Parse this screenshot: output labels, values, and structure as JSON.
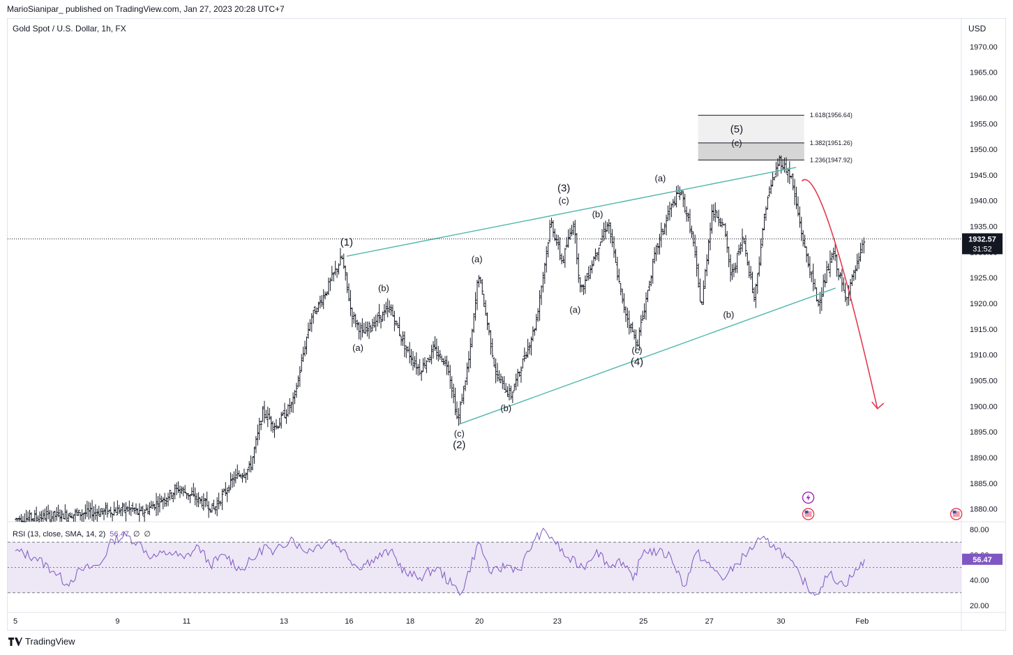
{
  "header": {
    "publish_line": "MarioSianipar_ published on TradingView.com, Jan 27, 2023 20:28 UTC+7"
  },
  "footer": {
    "brand": "TradingView",
    "logo_icon": "tradingview-logo-icon"
  },
  "colors": {
    "candle": "#131722",
    "trendline": "#4db6ac",
    "projection": "#e53950",
    "rsi_line": "#7e57c2",
    "rsi_band": "#ede7f6",
    "price_label_bg": "#131722",
    "fib_band_light": "#f0f0f0",
    "fib_band_dark": "#d6d6d6"
  },
  "chart_data": [
    {
      "type": "candlestick",
      "title": "Gold Spot / U.S. Dollar, 1h, FX",
      "currency": "USD",
      "x_ticks": [
        "5",
        "9",
        "11",
        "13",
        "16",
        "18",
        "20",
        "23",
        "25",
        "27",
        "30",
        "Feb"
      ],
      "y_ticks": [
        1880,
        1885,
        1890,
        1895,
        1900,
        1905,
        1910,
        1915,
        1920,
        1925,
        1930,
        1935,
        1940,
        1945,
        1950,
        1955,
        1960,
        1965,
        1970
      ],
      "ylim": [
        1877.5,
        1975
      ],
      "last_price": "1932.57",
      "countdown": "31:52",
      "swing_points": [
        {
          "x": 0.0,
          "y": 1878
        },
        {
          "x": 14.4,
          "y": 1880
        },
        {
          "x": 15.5,
          "y": 1879
        },
        {
          "x": 20.3,
          "y": 1884
        },
        {
          "x": 24.7,
          "y": 1880
        },
        {
          "x": 27.2,
          "y": 1886
        },
        {
          "x": 29.2,
          "y": 1888
        },
        {
          "x": 30.8,
          "y": 1899
        },
        {
          "x": 32.4,
          "y": 1896
        },
        {
          "x": 34.6,
          "y": 1901
        },
        {
          "x": 36.7,
          "y": 1917
        },
        {
          "x": 38.5,
          "y": 1922
        },
        {
          "x": 40.6,
          "y": 1929
        },
        {
          "x": 41.8,
          "y": 1918
        },
        {
          "x": 43.2,
          "y": 1914
        },
        {
          "x": 45.0,
          "y": 1917
        },
        {
          "x": 46.6,
          "y": 1919
        },
        {
          "x": 48.6,
          "y": 1911
        },
        {
          "x": 50.3,
          "y": 1907
        },
        {
          "x": 52.0,
          "y": 1911
        },
        {
          "x": 53.8,
          "y": 1908
        },
        {
          "x": 55.0,
          "y": 1897
        },
        {
          "x": 56.5,
          "y": 1910
        },
        {
          "x": 57.6,
          "y": 1926
        },
        {
          "x": 59.8,
          "y": 1906
        },
        {
          "x": 61.6,
          "y": 1902
        },
        {
          "x": 63.4,
          "y": 1910
        },
        {
          "x": 64.7,
          "y": 1916
        },
        {
          "x": 66.6,
          "y": 1936
        },
        {
          "x": 68.0,
          "y": 1928
        },
        {
          "x": 69.4,
          "y": 1936
        },
        {
          "x": 70.3,
          "y": 1922
        },
        {
          "x": 72.2,
          "y": 1930
        },
        {
          "x": 73.7,
          "y": 1936
        },
        {
          "x": 75.5,
          "y": 1920
        },
        {
          "x": 77.3,
          "y": 1912
        },
        {
          "x": 79.6,
          "y": 1930
        },
        {
          "x": 81.3,
          "y": 1938
        },
        {
          "x": 82.7,
          "y": 1942
        },
        {
          "x": 84.2,
          "y": 1933
        },
        {
          "x": 85.3,
          "y": 1919
        },
        {
          "x": 86.6,
          "y": 1938
        },
        {
          "x": 88.0,
          "y": 1936
        },
        {
          "x": 89.0,
          "y": 1925
        },
        {
          "x": 90.5,
          "y": 1933
        },
        {
          "x": 91.9,
          "y": 1921
        },
        {
          "x": 93.4,
          "y": 1940
        },
        {
          "x": 95.0,
          "y": 1948
        },
        {
          "x": 96.4,
          "y": 1945
        },
        {
          "x": 98.1,
          "y": 1931
        },
        {
          "x": 99.8,
          "y": 1920
        },
        {
          "x": 101.7,
          "y": 1930
        },
        {
          "x": 103.2,
          "y": 1921
        },
        {
          "x": 104.8,
          "y": 1928
        },
        {
          "x": 105.6,
          "y": 1932.57
        }
      ],
      "fib_levels": [
        {
          "label": "1.236(1947.92)",
          "price": 1947.92
        },
        {
          "label": "1.382(1951.26)",
          "price": 1951.26
        },
        {
          "label": "1.618(1956.64)",
          "price": 1956.64
        }
      ],
      "trendlines": [
        {
          "name": "upper",
          "from": {
            "x": 41.2,
            "y": 1929.2
          },
          "to": {
            "x": 97.1,
            "y": 1946.5
          }
        },
        {
          "name": "lower",
          "from": {
            "x": 55.2,
            "y": 1896.5
          },
          "to": {
            "x": 102.0,
            "y": 1923.0
          }
        }
      ],
      "projection": {
        "from": {
          "x": 97.8,
          "y": 1943.8
        },
        "peak": {
          "x": 98.6,
          "y": 1945.3
        },
        "to": {
          "x": 107.2,
          "y": 1899.5
        }
      },
      "wave_labels": [
        {
          "text": "(1)",
          "x": 41.2,
          "y": 1931.3,
          "major": true
        },
        {
          "text": "(a)",
          "x": 42.6,
          "y": 1910.8,
          "major": false
        },
        {
          "text": "(b)",
          "x": 45.8,
          "y": 1922.4,
          "major": false
        },
        {
          "text": "(c)",
          "x": 55.2,
          "y": 1894.1,
          "major": false
        },
        {
          "text": "(2)",
          "x": 55.2,
          "y": 1891.8,
          "major": true
        },
        {
          "text": "(a)",
          "x": 57.4,
          "y": 1928.0,
          "major": false
        },
        {
          "text": "(b)",
          "x": 61.0,
          "y": 1899.0,
          "major": false
        },
        {
          "text": "(3)",
          "x": 68.2,
          "y": 1941.8,
          "major": true
        },
        {
          "text": "(c)",
          "x": 68.2,
          "y": 1939.4,
          "major": false
        },
        {
          "text": "(a)",
          "x": 69.6,
          "y": 1918.2,
          "major": false
        },
        {
          "text": "(b)",
          "x": 72.4,
          "y": 1936.8,
          "major": false
        },
        {
          "text": "(c)",
          "x": 77.3,
          "y": 1910.3,
          "major": false
        },
        {
          "text": "(4)",
          "x": 77.3,
          "y": 1908.0,
          "major": true
        },
        {
          "text": "(a)",
          "x": 80.2,
          "y": 1943.8,
          "major": false
        },
        {
          "text": "(b)",
          "x": 88.7,
          "y": 1917.2,
          "major": false
        },
        {
          "text": "(5)",
          "x": 89.7,
          "y": 1953.3,
          "major": true
        },
        {
          "text": "(c)",
          "x": 89.7,
          "y": 1950.6,
          "major": false
        }
      ],
      "event_icons": [
        {
          "name": "lightning-icon",
          "x": 98.6,
          "y": 1882.2
        },
        {
          "name": "us-flag-icon",
          "x": 98.6,
          "y": 1879.0
        },
        {
          "name": "us-flag-icon",
          "x": 117.0,
          "y": 1879.0
        }
      ]
    },
    {
      "type": "line",
      "title": "RSI (13, close, SMA, 14, 2)",
      "value_label": "56.47",
      "ohlc_placeholders": [
        "∅",
        "∅"
      ],
      "y_ticks": [
        "80.00",
        "60.00",
        "40.00",
        "20.00"
      ],
      "ylim": [
        15,
        85
      ],
      "band": [
        30,
        70
      ],
      "midline": 50,
      "points": [
        {
          "x": 0.0,
          "y": 63
        },
        {
          "x": 2.5,
          "y": 58
        },
        {
          "x": 4.8,
          "y": 47
        },
        {
          "x": 6.4,
          "y": 37
        },
        {
          "x": 8.2,
          "y": 48
        },
        {
          "x": 10.5,
          "y": 52
        },
        {
          "x": 12.1,
          "y": 72
        },
        {
          "x": 13.8,
          "y": 75
        },
        {
          "x": 15.2,
          "y": 70
        },
        {
          "x": 17.0,
          "y": 58
        },
        {
          "x": 19.2,
          "y": 62
        },
        {
          "x": 21.0,
          "y": 57
        },
        {
          "x": 22.8,
          "y": 67
        },
        {
          "x": 24.2,
          "y": 52
        },
        {
          "x": 26.1,
          "y": 60
        },
        {
          "x": 28.0,
          "y": 48
        },
        {
          "x": 30.1,
          "y": 60
        },
        {
          "x": 31.2,
          "y": 68
        },
        {
          "x": 32.0,
          "y": 60
        },
        {
          "x": 34.3,
          "y": 74
        },
        {
          "x": 35.8,
          "y": 63
        },
        {
          "x": 37.3,
          "y": 66
        },
        {
          "x": 39.2,
          "y": 72
        },
        {
          "x": 40.7,
          "y": 64
        },
        {
          "x": 42.6,
          "y": 50
        },
        {
          "x": 44.3,
          "y": 56
        },
        {
          "x": 46.6,
          "y": 63
        },
        {
          "x": 48.6,
          "y": 45
        },
        {
          "x": 50.3,
          "y": 42
        },
        {
          "x": 52.4,
          "y": 50
        },
        {
          "x": 54.3,
          "y": 36
        },
        {
          "x": 55.5,
          "y": 30
        },
        {
          "x": 57.6,
          "y": 70
        },
        {
          "x": 59.2,
          "y": 45
        },
        {
          "x": 61.1,
          "y": 52
        },
        {
          "x": 62.7,
          "y": 48
        },
        {
          "x": 64.4,
          "y": 70
        },
        {
          "x": 65.4,
          "y": 78
        },
        {
          "x": 66.7,
          "y": 74
        },
        {
          "x": 68.5,
          "y": 58
        },
        {
          "x": 70.6,
          "y": 50
        },
        {
          "x": 72.3,
          "y": 64
        },
        {
          "x": 74.0,
          "y": 50
        },
        {
          "x": 75.1,
          "y": 57
        },
        {
          "x": 76.8,
          "y": 40
        },
        {
          "x": 78.2,
          "y": 64
        },
        {
          "x": 79.9,
          "y": 62
        },
        {
          "x": 81.5,
          "y": 59
        },
        {
          "x": 83.2,
          "y": 35
        },
        {
          "x": 84.7,
          "y": 62
        },
        {
          "x": 86.5,
          "y": 50
        },
        {
          "x": 88.2,
          "y": 41
        },
        {
          "x": 89.7,
          "y": 53
        },
        {
          "x": 91.1,
          "y": 62
        },
        {
          "x": 92.6,
          "y": 72
        },
        {
          "x": 94.3,
          "y": 68
        },
        {
          "x": 95.9,
          "y": 58
        },
        {
          "x": 97.7,
          "y": 42
        },
        {
          "x": 99.4,
          "y": 28
        },
        {
          "x": 101.2,
          "y": 45
        },
        {
          "x": 103.0,
          "y": 36
        },
        {
          "x": 104.7,
          "y": 48
        },
        {
          "x": 105.6,
          "y": 56.47
        }
      ]
    }
  ]
}
